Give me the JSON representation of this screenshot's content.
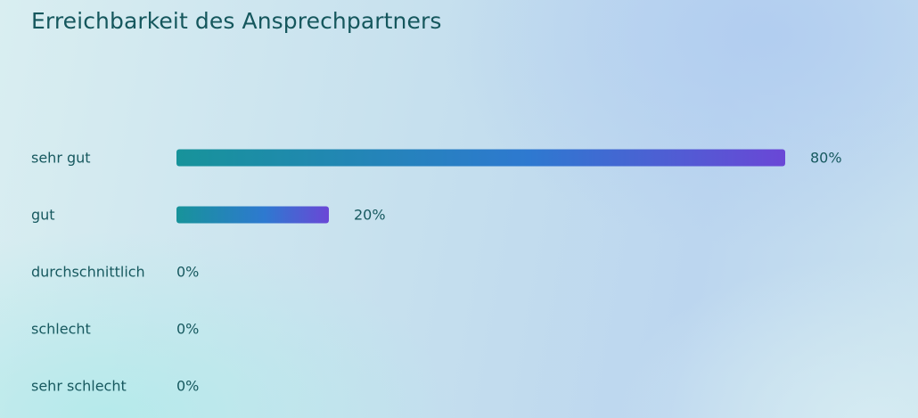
{
  "title": "Erreichbarkeit des Ansprechpartners",
  "chart_data": {
    "type": "bar",
    "orientation": "horizontal",
    "title": "Erreichbarkeit des Ansprechpartners",
    "categories": [
      "sehr gut",
      "gut",
      "durchschnittlich",
      "schlecht",
      "sehr schlecht"
    ],
    "values": [
      80,
      20,
      0,
      0,
      0
    ],
    "value_labels": [
      "80%",
      "20%",
      "0%",
      "0%",
      "0%"
    ],
    "unit": "%",
    "xlim": [
      0,
      100
    ],
    "grid": false,
    "legend": "none",
    "colors": {
      "bar_gradient_start": "#17939a",
      "bar_gradient_mid": "#2e79d0",
      "bar_gradient_end": "#6a47d6",
      "text": "#17595f"
    }
  }
}
